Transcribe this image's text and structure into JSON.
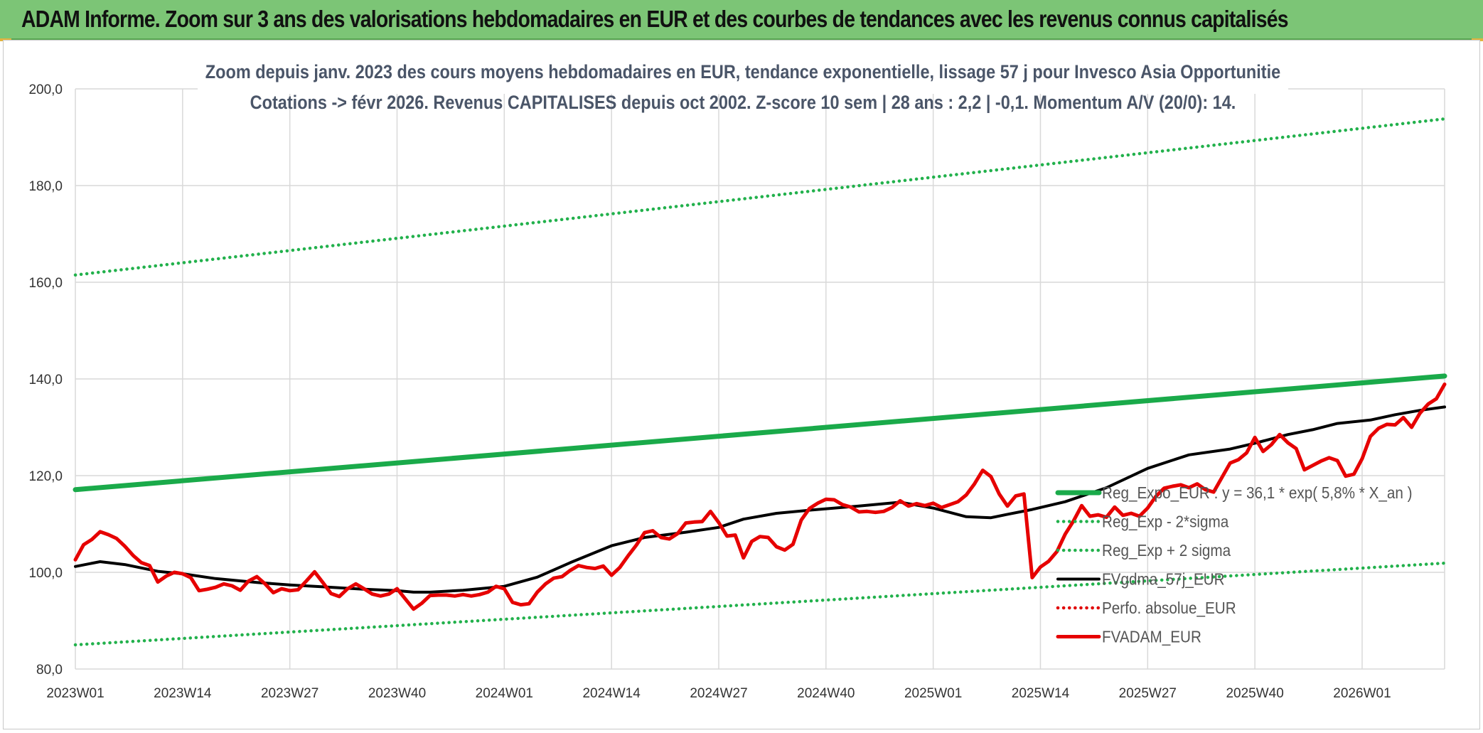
{
  "header": {
    "title": "ADAM Informe. Zoom sur 3 ans des valorisations hebdomadaires en EUR et des courbes de tendances avec les revenus connus capitalisés"
  },
  "colors": {
    "banner": "#7cc576",
    "reg_expo": "#1aaa4a",
    "sigma_bands": "#22b14c",
    "fvgdma": "#000000",
    "perfo": "#e00000",
    "fvadam": "#e60000"
  },
  "chart_data": {
    "type": "line",
    "title_lines": [
      "Zoom depuis janv. 2023 des cours moyens hebdomadaires en EUR, tendance exponentielle, lissage 57 j pour Invesco Asia Opportunitie",
      "Cotations -> févr 2026. Revenus CAPITALISES depuis oct 2002. Z-score 10 sem | 28 ans : 2,2 | -0,1. Momentum A/V (20/0): 14."
    ],
    "xlabel": "",
    "ylabel": "",
    "ylim": [
      80,
      200
    ],
    "yticks": [
      "80,0",
      "100,0",
      "120,0",
      "140,0",
      "160,0",
      "180,0",
      "200,0"
    ],
    "xticks": [
      "2023W01",
      "2023W14",
      "2023W27",
      "2023W40",
      "2024W01",
      "2024W14",
      "2024W27",
      "2024W40",
      "2025W01",
      "2025W14",
      "2025W27",
      "2025W40",
      "2026W01"
    ],
    "x_range_weeks": [
      0,
      166
    ],
    "grid": true,
    "legend_position": "bottom-right",
    "series": [
      {
        "name": "Reg_Expo_EUR : y = 36,1 * exp( 5,8% *  X_an )",
        "style": "solid-thick",
        "color": "#1aaa4a",
        "x": [
          0,
          166
        ],
        "values": [
          117.1,
          140.6
        ]
      },
      {
        "name": "Reg_Exp - 2*sigma",
        "style": "dotted",
        "color": "#22b14c",
        "x": [
          0,
          166
        ],
        "values": [
          85.0,
          101.9
        ]
      },
      {
        "name": "Reg_Exp + 2 sigma",
        "style": "dotted",
        "color": "#22b14c",
        "x": [
          0,
          166
        ],
        "values": [
          161.5,
          193.8
        ]
      },
      {
        "name": "FVgdma_57j_EUR",
        "style": "solid",
        "color": "#000000",
        "x": [
          0,
          3,
          6,
          10,
          13,
          17,
          22,
          26,
          30,
          35,
          39,
          41,
          43,
          47,
          52,
          56,
          60,
          65,
          69,
          74,
          78,
          81,
          85,
          90,
          95,
          100,
          104,
          108,
          111,
          113,
          116,
          120,
          125,
          130,
          135,
          140,
          143,
          147,
          150,
          153,
          157,
          160,
          163,
          166
        ],
        "values": [
          101.2,
          102.2,
          101.6,
          100.2,
          99.7,
          98.7,
          97.9,
          97.4,
          97.0,
          96.5,
          96.2,
          95.9,
          95.9,
          96.3,
          97.1,
          99.0,
          102.0,
          105.5,
          107.2,
          108.3,
          109.3,
          111.0,
          112.2,
          113.0,
          113.7,
          114.5,
          113.3,
          111.5,
          111.3,
          112.0,
          113.0,
          114.6,
          117.5,
          121.5,
          124.3,
          125.5,
          126.7,
          128.5,
          129.5,
          130.8,
          131.5,
          132.6,
          133.5,
          134.2
        ]
      },
      {
        "name": "Perfo. absolue_EUR",
        "style": "dotted",
        "color": "#e00000",
        "x": [],
        "values": []
      },
      {
        "name": "FVADAM_EUR",
        "style": "solid-thick",
        "color": "#e60000",
        "x": [
          0,
          1,
          2,
          3,
          4,
          5,
          6,
          7,
          8,
          9,
          10,
          11,
          12,
          13,
          14,
          15,
          16,
          17,
          18,
          19,
          20,
          21,
          22,
          23,
          24,
          25,
          26,
          27,
          28,
          29,
          30,
          31,
          32,
          33,
          34,
          35,
          36,
          37,
          38,
          39,
          40,
          41,
          42,
          43,
          44,
          45,
          46,
          47,
          48,
          49,
          50,
          51,
          52,
          53,
          54,
          55,
          56,
          57,
          58,
          59,
          60,
          61,
          62,
          63,
          64,
          65,
          66,
          67,
          68,
          69,
          70,
          71,
          72,
          73,
          74,
          75,
          76,
          77,
          78,
          79,
          80,
          81,
          82,
          83,
          84,
          85,
          86,
          87,
          88,
          89,
          90,
          91,
          92,
          93,
          94,
          95,
          96,
          97,
          98,
          99,
          100,
          101,
          102,
          103,
          104,
          105,
          106,
          107,
          108,
          109,
          110,
          111,
          112,
          113,
          114,
          115,
          116,
          117,
          118,
          119,
          120,
          121,
          122,
          123,
          124,
          125,
          126,
          127,
          128,
          129,
          130,
          131,
          132,
          133,
          134,
          135,
          136,
          137,
          138,
          139,
          140,
          141,
          142,
          143,
          144,
          145,
          146,
          147,
          148,
          149,
          150,
          151,
          152,
          153,
          154,
          155,
          156,
          157,
          158,
          159,
          160,
          161,
          162,
          163,
          164,
          165,
          166
        ],
        "values": [
          102.6,
          105.7,
          106.8,
          108.4,
          107.8,
          107.0,
          105.4,
          103.5,
          102.0,
          101.4,
          98.0,
          99.2,
          100.0,
          99.7,
          98.9,
          96.2,
          96.5,
          96.9,
          97.6,
          97.2,
          96.3,
          98.2,
          99.1,
          97.6,
          95.8,
          96.6,
          96.2,
          96.4,
          98.2,
          100.1,
          97.9,
          95.6,
          95.0,
          96.6,
          97.6,
          96.6,
          95.5,
          95.1,
          95.5,
          96.6,
          94.5,
          92.4,
          93.6,
          95.2,
          95.3,
          95.3,
          95.1,
          95.4,
          95.1,
          95.4,
          95.9,
          97.1,
          96.6,
          93.8,
          93.3,
          93.5,
          95.9,
          97.6,
          98.8,
          99.1,
          100.4,
          101.4,
          101.0,
          100.8,
          101.3,
          99.4,
          101.0,
          103.4,
          105.6,
          108.2,
          108.6,
          107.2,
          106.9,
          108.0,
          110.2,
          110.4,
          110.5,
          112.6,
          110.3,
          107.5,
          107.7,
          103.0,
          106.4,
          107.4,
          107.2,
          105.3,
          104.6,
          105.8,
          110.8,
          113.2,
          114.3,
          115.1,
          115.0,
          114.0,
          113.5,
          112.5,
          112.6,
          112.4,
          112.6,
          113.4,
          114.8,
          113.7,
          114.2,
          113.8,
          114.3,
          113.4,
          114.0,
          114.6,
          116.0,
          118.3,
          121.1,
          119.8,
          116.2,
          113.7,
          115.8,
          116.2,
          98.9,
          101.1,
          102.3,
          104.3,
          107.9,
          110.6,
          113.8,
          111.6,
          111.9,
          111.4,
          113.5,
          111.8,
          112.2,
          111.6,
          113.3,
          115.7,
          117.4,
          117.8,
          118.1,
          117.5,
          118.3,
          117.1,
          116.6,
          119.6,
          122.6,
          123.3,
          124.7,
          127.9,
          125.0,
          126.4,
          128.5,
          126.8,
          125.6,
          121.2,
          122.1,
          123.0,
          123.7,
          123.1,
          119.9,
          120.3,
          123.5,
          128.1,
          129.8,
          130.6,
          130.5,
          132.0,
          130.0,
          132.9,
          134.8,
          135.9,
          138.9
        ]
      }
    ]
  }
}
